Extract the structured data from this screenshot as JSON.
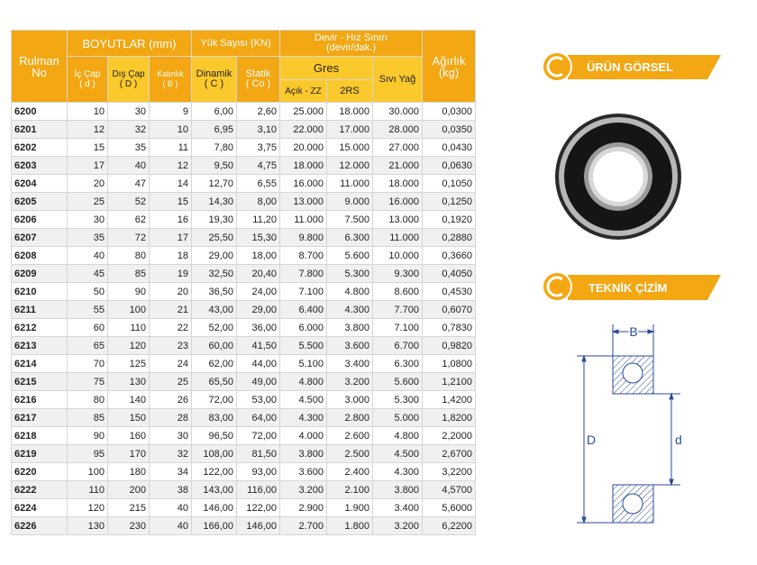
{
  "table": {
    "header": {
      "bearing_no": [
        "Rulman",
        "No"
      ],
      "dimensions": "BOYUTLAR (mm)",
      "inner": [
        "İç Çap",
        "( d )"
      ],
      "outer": [
        "Dış Çap",
        "( D )"
      ],
      "width": [
        "Kalınlık",
        "( B )"
      ],
      "load": "Yük Sayısı (KN)",
      "dynamic": [
        "Dinamik",
        "( C )"
      ],
      "static": [
        "Statik",
        "( Co )"
      ],
      "speed": [
        "Devir - Hız Sınırı",
        "(devir/dak.)"
      ],
      "grease": "Gres",
      "open_zz": "Açık - ZZ",
      "rs2": "2RS",
      "oil": "Sıvı Yağ",
      "weight": [
        "Ağırlık",
        "(kg)"
      ]
    },
    "rows": [
      [
        "6200",
        "10",
        "30",
        "9",
        "6,00",
        "2,60",
        "25.000",
        "18.000",
        "30.000",
        "0,0300"
      ],
      [
        "6201",
        "12",
        "32",
        "10",
        "6,95",
        "3,10",
        "22.000",
        "17.000",
        "28.000",
        "0,0350"
      ],
      [
        "6202",
        "15",
        "35",
        "11",
        "7,80",
        "3,75",
        "20.000",
        "15.000",
        "27.000",
        "0,0430"
      ],
      [
        "6203",
        "17",
        "40",
        "12",
        "9,50",
        "4,75",
        "18.000",
        "12.000",
        "21.000",
        "0,0630"
      ],
      [
        "6204",
        "20",
        "47",
        "14",
        "12,70",
        "6,55",
        "16.000",
        "11.000",
        "18.000",
        "0,1050"
      ],
      [
        "6205",
        "25",
        "52",
        "15",
        "14,30",
        "8,00",
        "13.000",
        "9.000",
        "16.000",
        "0,1250"
      ],
      [
        "6206",
        "30",
        "62",
        "16",
        "19,30",
        "11,20",
        "11.000",
        "7.500",
        "13.000",
        "0,1920"
      ],
      [
        "6207",
        "35",
        "72",
        "17",
        "25,50",
        "15,30",
        "9.800",
        "6.300",
        "11.000",
        "0,2880"
      ],
      [
        "6208",
        "40",
        "80",
        "18",
        "29,00",
        "18,00",
        "8.700",
        "5.600",
        "10.000",
        "0,3660"
      ],
      [
        "6209",
        "45",
        "85",
        "19",
        "32,50",
        "20,40",
        "7.800",
        "5.300",
        "9.300",
        "0,4050"
      ],
      [
        "6210",
        "50",
        "90",
        "20",
        "36,50",
        "24,00",
        "7.100",
        "4.800",
        "8.600",
        "0,4530"
      ],
      [
        "6211",
        "55",
        "100",
        "21",
        "43,00",
        "29,00",
        "6.400",
        "4.300",
        "7.700",
        "0,6070"
      ],
      [
        "6212",
        "60",
        "110",
        "22",
        "52,00",
        "36,00",
        "6.000",
        "3.800",
        "7.100",
        "0,7830"
      ],
      [
        "6213",
        "65",
        "120",
        "23",
        "60,00",
        "41,50",
        "5.500",
        "3.600",
        "6.700",
        "0,9820"
      ],
      [
        "6214",
        "70",
        "125",
        "24",
        "62,00",
        "44,00",
        "5.100",
        "3.400",
        "6.300",
        "1,0800"
      ],
      [
        "6215",
        "75",
        "130",
        "25",
        "65,50",
        "49,00",
        "4.800",
        "3.200",
        "5.600",
        "1,2100"
      ],
      [
        "6216",
        "80",
        "140",
        "26",
        "72,00",
        "53,00",
        "4.500",
        "3.000",
        "5.300",
        "1,4200"
      ],
      [
        "6217",
        "85",
        "150",
        "28",
        "83,00",
        "64,00",
        "4.300",
        "2.800",
        "5.000",
        "1,8200"
      ],
      [
        "6218",
        "90",
        "160",
        "30",
        "96,50",
        "72,00",
        "4.000",
        "2.600",
        "4.800",
        "2,2000"
      ],
      [
        "6219",
        "95",
        "170",
        "32",
        "108,00",
        "81,50",
        "3.800",
        "2.500",
        "4.500",
        "2,6700"
      ],
      [
        "6220",
        "100",
        "180",
        "34",
        "122,00",
        "93,00",
        "3.600",
        "2.400",
        "4.300",
        "3,2200"
      ],
      [
        "6222",
        "110",
        "200",
        "38",
        "143,00",
        "116,00",
        "3.200",
        "2.100",
        "3.800",
        "4,5700"
      ],
      [
        "6224",
        "120",
        "215",
        "40",
        "146,00",
        "122,00",
        "2.900",
        "1.900",
        "3.400",
        "5,6000"
      ],
      [
        "6226",
        "130",
        "230",
        "40",
        "166,00",
        "146,00",
        "2.700",
        "1.800",
        "3.200",
        "6,2200"
      ]
    ]
  },
  "panels": {
    "product": "ÜRÜN GÖRSEL",
    "drawing": "TEKNİK ÇİZİM"
  },
  "drawing_labels": {
    "width": "B",
    "outer": "D",
    "inner": "d"
  }
}
